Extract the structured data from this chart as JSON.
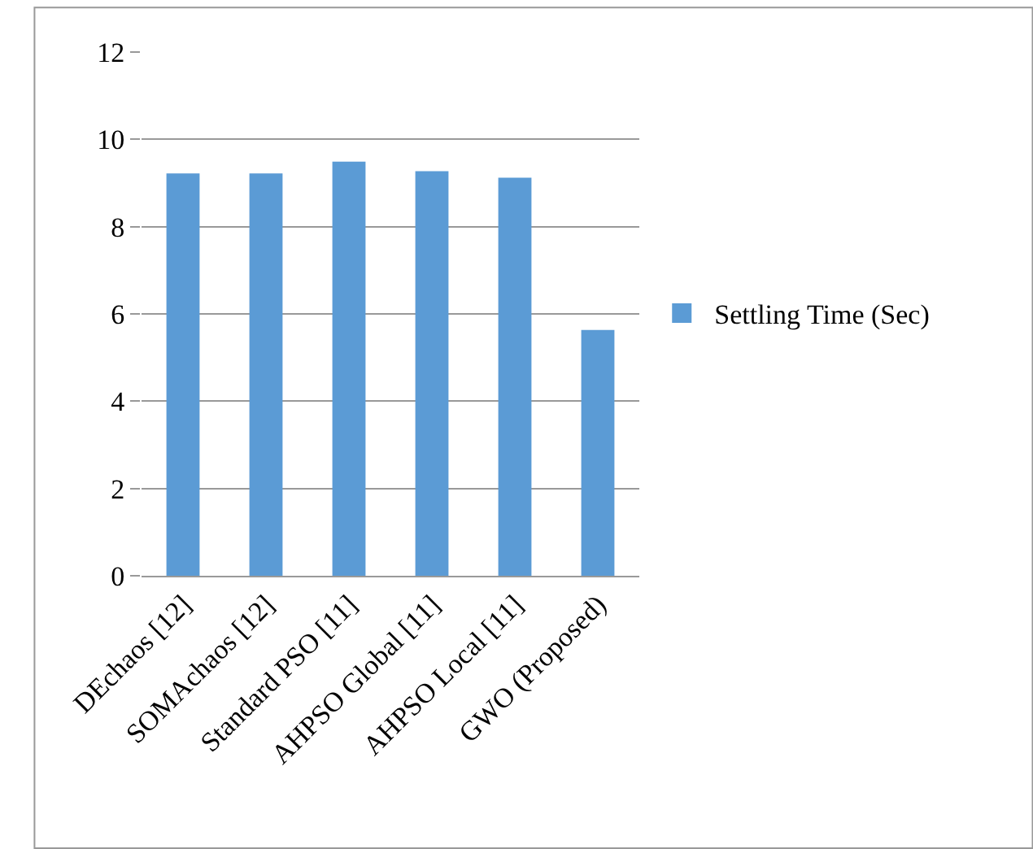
{
  "chart_data": {
    "type": "bar",
    "categories": [
      "DEchaos [12]",
      "SOMAchaos [12]",
      "Standard PSO [11]",
      "AHPSO Global [11]",
      "AHPSO Local [11]",
      "GWO (Proposed)"
    ],
    "series": [
      {
        "name": "Settling Time (Sec)",
        "color": "#5b9bd5",
        "values": [
          9.22,
          9.22,
          9.49,
          9.27,
          9.12,
          5.63
        ]
      }
    ],
    "ylim": [
      0,
      12
    ],
    "yticks": [
      0,
      2,
      4,
      6,
      8,
      10,
      12
    ],
    "grid": "y",
    "legend": "right"
  }
}
